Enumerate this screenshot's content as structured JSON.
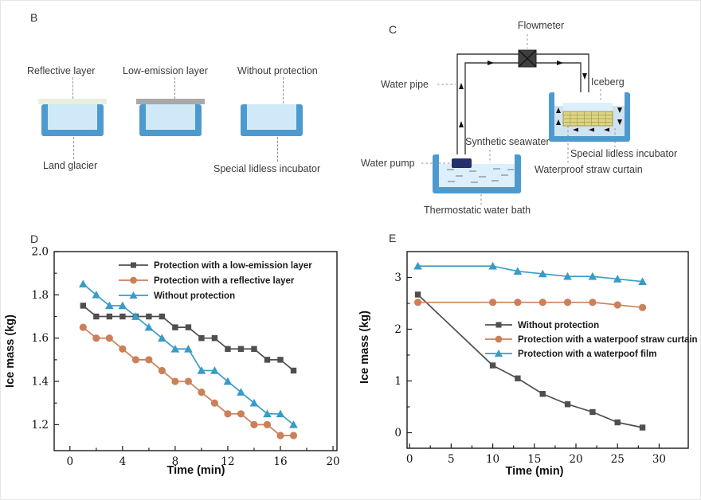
{
  "panels": {
    "B": {
      "tag": "B",
      "labels": {
        "reflective_layer": "Reflective layer",
        "low_emission_layer": "Low-emission layer",
        "without_protection": "Without protection",
        "land_glacier": "Land glacier",
        "special_lidless_incubator": "Special lidless incubator"
      },
      "colors": {
        "incubator_border": "#4d9acf",
        "water": "#cfe9f8",
        "reflective_layer": "#e9efdc",
        "low_emission_layer": "#a9a9a9"
      }
    },
    "C": {
      "tag": "C",
      "labels": {
        "flowmeter": "Flowmeter",
        "water_pipe": "Water pipe",
        "water_pump": "Water pump",
        "synthetic_seawater": "Synthetic seawater",
        "thermostatic_water_bath": "Thermostatic water bath",
        "iceberg": "Iceberg",
        "special_lidless_incubator": "Special lidless incubator",
        "waterproof_straw_curtain": "Waterproof straw curtain"
      },
      "colors": {
        "tub_border": "#4d9acf",
        "water": "#ddeffa",
        "straw": "#ddd584",
        "pump": "#252f6b",
        "flowmeter": "#3f3f3f"
      }
    },
    "D": {
      "tag": "D"
    },
    "E": {
      "tag": "E"
    }
  },
  "chart_data": [
    {
      "id": "D",
      "type": "line",
      "title": "",
      "xlabel": "Time (min)",
      "ylabel": "Ice mass (kg)",
      "xlim": [
        -1.2,
        20.3
      ],
      "ylim": [
        1.08,
        2.0
      ],
      "xticks": [
        0,
        4,
        8,
        12,
        16,
        20
      ],
      "yticks": [
        1.2,
        1.4,
        1.6,
        1.8,
        2.0
      ],
      "grid": false,
      "legend_position": "upper-center-inside",
      "x": [
        1,
        2,
        3,
        4,
        5,
        6,
        7,
        8,
        9,
        10,
        11,
        12,
        13,
        14,
        15,
        16,
        17
      ],
      "series": [
        {
          "name": "Protection with a low-emission layer",
          "color": "#4f4f4f",
          "marker": "square",
          "values": [
            1.75,
            1.7,
            1.7,
            1.7,
            1.7,
            1.7,
            1.7,
            1.65,
            1.65,
            1.6,
            1.6,
            1.55,
            1.55,
            1.55,
            1.5,
            1.5,
            1.45
          ]
        },
        {
          "name": "Protection with a reflective layer",
          "color": "#cb8059",
          "marker": "circle",
          "values": [
            1.65,
            1.6,
            1.6,
            1.55,
            1.5,
            1.5,
            1.45,
            1.4,
            1.4,
            1.35,
            1.3,
            1.25,
            1.25,
            1.2,
            1.2,
            1.15,
            1.15
          ]
        },
        {
          "name": "Without protection",
          "color": "#389cc7",
          "marker": "triangle",
          "values": [
            1.85,
            1.8,
            1.75,
            1.75,
            1.7,
            1.65,
            1.6,
            1.55,
            1.55,
            1.45,
            1.45,
            1.4,
            1.35,
            1.3,
            1.25,
            1.25,
            1.2
          ]
        }
      ]
    },
    {
      "id": "E",
      "type": "line",
      "title": "",
      "xlabel": "Time (min)",
      "ylabel": "Ice mass (kg)",
      "xlim": [
        -0.3,
        33.5
      ],
      "ylim": [
        -0.3,
        3.5
      ],
      "xticks": [
        0,
        5,
        10,
        15,
        20,
        25,
        30
      ],
      "yticks": [
        0,
        1,
        2,
        3
      ],
      "grid": false,
      "legend_position": "center-inside",
      "x": [
        1,
        10,
        13,
        16,
        19,
        22,
        25,
        28
      ],
      "series": [
        {
          "name": "Without protection",
          "color": "#4f4f4f",
          "marker": "square",
          "values": [
            2.67,
            1.3,
            1.05,
            0.75,
            0.55,
            0.4,
            0.2,
            0.1
          ]
        },
        {
          "name": "Protection with a waterpoof straw curtain",
          "color": "#cb8059",
          "marker": "circle",
          "values": [
            2.52,
            2.52,
            2.52,
            2.52,
            2.52,
            2.52,
            2.47,
            2.42
          ]
        },
        {
          "name": "Protection with a waterpoof film",
          "color": "#389cc7",
          "marker": "triangle",
          "values": [
            3.22,
            3.22,
            3.12,
            3.07,
            3.02,
            3.02,
            2.97,
            2.92
          ]
        }
      ]
    }
  ]
}
